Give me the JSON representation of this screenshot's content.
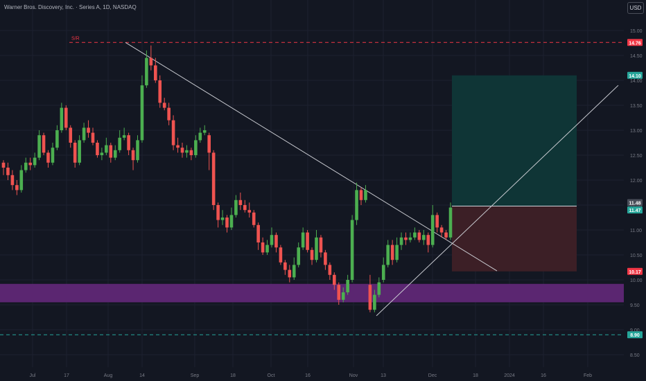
{
  "header": {
    "title": "Warner Bros. Discovery, Inc. · Series A, 1D, NASDAQ",
    "currency_button": "USD"
  },
  "colors": {
    "background": "#131722",
    "up": "#4caf50",
    "down": "#ef5350",
    "grid": "#1c2030",
    "axis_text": "#787b86",
    "resistance": "#f23645",
    "support": "#26a69a",
    "zone": "#5b2671",
    "target_zone": "#0f3536",
    "stop_zone": "#3c1f26",
    "trendline": "#c9cbd1"
  },
  "chart_data": {
    "type": "candlestick",
    "yaxis": {
      "ticks": [
        "15.00",
        "14.50",
        "14.00",
        "13.50",
        "13.00",
        "12.50",
        "12.00",
        "11.50",
        "11.00",
        "10.50",
        "10.00",
        "9.50",
        "9.00",
        "8.50"
      ],
      "range": [
        8.15,
        15.35
      ]
    },
    "xaxis": {
      "ticks": [
        "Jul",
        "17",
        "Aug",
        "14",
        "Sep",
        "18",
        "Oct",
        "16",
        "Nov",
        "13",
        "Dec",
        "18",
        "2024",
        "16",
        "Feb"
      ]
    },
    "price_labels": [
      {
        "value": 14.76,
        "text": "14.76",
        "color": "#f23645"
      },
      {
        "value": 14.1,
        "text": "14.10",
        "color": "#26a69a"
      },
      {
        "value": 11.48,
        "text": "11.48",
        "color": "#4a4e59"
      },
      {
        "value": 11.47,
        "text": "11.47",
        "color": "#26a69a"
      },
      {
        "value": 10.17,
        "text": "10.17",
        "color": "#f23645"
      },
      {
        "value": 8.9,
        "text": "8.90",
        "color": "#26a69a"
      }
    ],
    "resistance": {
      "value": 14.76,
      "label": "S/R"
    },
    "support": {
      "value": 8.9
    },
    "zone": {
      "from": 9.55,
      "to": 9.92
    },
    "long_position": {
      "entry": 11.48,
      "target": 14.1,
      "stop": 10.17
    },
    "candles": [
      [
        12.35,
        12.25,
        12.4,
        12.1
      ],
      [
        12.25,
        12.1,
        12.35,
        12.0
      ],
      [
        12.1,
        11.9,
        12.2,
        11.8
      ],
      [
        11.9,
        11.8,
        12.0,
        11.7
      ],
      [
        11.8,
        12.2,
        12.3,
        11.75
      ],
      [
        12.2,
        12.35,
        12.45,
        12.15
      ],
      [
        12.35,
        12.3,
        12.45,
        12.2
      ],
      [
        12.3,
        12.45,
        12.55,
        12.25
      ],
      [
        12.45,
        12.9,
        13.0,
        12.4
      ],
      [
        12.9,
        12.55,
        12.95,
        12.5
      ],
      [
        12.55,
        12.35,
        12.6,
        12.25
      ],
      [
        12.35,
        12.65,
        12.75,
        12.3
      ],
      [
        12.65,
        13.0,
        13.1,
        12.6
      ],
      [
        13.0,
        13.45,
        13.55,
        12.95
      ],
      [
        13.45,
        13.05,
        13.5,
        13.0
      ],
      [
        13.05,
        12.75,
        13.1,
        12.65
      ],
      [
        12.75,
        12.35,
        12.8,
        12.25
      ],
      [
        12.35,
        12.8,
        12.9,
        12.3
      ],
      [
        12.8,
        13.05,
        13.15,
        12.75
      ],
      [
        13.05,
        12.95,
        13.2,
        12.85
      ],
      [
        12.95,
        12.75,
        13.05,
        12.7
      ],
      [
        12.75,
        12.5,
        12.8,
        12.45
      ],
      [
        12.5,
        12.55,
        12.65,
        12.4
      ],
      [
        12.55,
        12.7,
        12.85,
        12.5
      ],
      [
        12.7,
        12.45,
        12.75,
        12.35
      ],
      [
        12.45,
        12.6,
        12.7,
        12.4
      ],
      [
        12.6,
        12.85,
        13.0,
        12.55
      ],
      [
        12.85,
        12.9,
        13.05,
        12.8
      ],
      [
        12.9,
        12.6,
        12.95,
        12.5
      ],
      [
        12.6,
        12.4,
        12.65,
        12.2
      ],
      [
        12.4,
        12.8,
        12.9,
        12.35
      ],
      [
        12.8,
        13.9,
        14.1,
        12.75
      ],
      [
        13.9,
        14.45,
        14.6,
        13.85
      ],
      [
        14.45,
        14.3,
        14.7,
        14.2
      ],
      [
        14.3,
        14.0,
        14.45,
        13.95
      ],
      [
        14.0,
        13.55,
        14.1,
        13.45
      ],
      [
        13.55,
        13.45,
        13.65,
        13.4
      ],
      [
        13.45,
        13.2,
        13.55,
        13.1
      ],
      [
        13.2,
        12.7,
        13.3,
        12.6
      ],
      [
        12.7,
        12.65,
        12.85,
        12.55
      ],
      [
        12.65,
        12.55,
        12.75,
        12.45
      ],
      [
        12.55,
        12.6,
        12.7,
        12.45
      ],
      [
        12.6,
        12.5,
        12.65,
        12.4
      ],
      [
        12.5,
        12.8,
        12.9,
        12.45
      ],
      [
        12.8,
        12.95,
        13.05,
        12.75
      ],
      [
        12.95,
        13.0,
        13.1,
        12.9
      ],
      [
        12.9,
        12.55,
        12.95,
        12.2
      ],
      [
        12.55,
        11.5,
        12.6,
        11.4
      ],
      [
        11.5,
        11.2,
        11.55,
        11.05
      ],
      [
        11.2,
        11.25,
        11.4,
        11.1
      ],
      [
        11.25,
        11.05,
        11.3,
        10.95
      ],
      [
        11.05,
        11.3,
        11.45,
        11.0
      ],
      [
        11.3,
        11.6,
        11.7,
        11.25
      ],
      [
        11.6,
        11.5,
        11.75,
        11.4
      ],
      [
        11.5,
        11.4,
        11.6,
        11.35
      ],
      [
        11.4,
        11.35,
        11.55,
        11.25
      ],
      [
        11.35,
        11.1,
        11.4,
        11.05
      ],
      [
        11.1,
        10.75,
        11.15,
        10.6
      ],
      [
        10.75,
        10.55,
        10.85,
        10.5
      ],
      [
        10.55,
        10.7,
        10.8,
        10.5
      ],
      [
        10.7,
        10.9,
        11.05,
        10.65
      ],
      [
        10.9,
        10.65,
        10.95,
        10.55
      ],
      [
        10.65,
        10.35,
        10.7,
        10.3
      ],
      [
        10.35,
        10.2,
        10.4,
        10.1
      ],
      [
        10.2,
        10.05,
        10.3,
        9.95
      ],
      [
        10.05,
        10.3,
        10.45,
        10.0
      ],
      [
        10.3,
        10.65,
        10.75,
        10.25
      ],
      [
        10.65,
        10.95,
        11.05,
        10.6
      ],
      [
        10.95,
        10.6,
        11.0,
        10.55
      ],
      [
        10.6,
        10.4,
        10.65,
        10.3
      ],
      [
        10.4,
        10.85,
        11.0,
        10.35
      ],
      [
        10.85,
        10.55,
        10.9,
        10.45
      ],
      [
        10.55,
        10.3,
        10.6,
        10.2
      ],
      [
        10.3,
        10.1,
        10.35,
        10.0
      ],
      [
        10.1,
        9.9,
        10.15,
        9.8
      ],
      [
        9.9,
        9.6,
        9.95,
        9.5
      ],
      [
        9.6,
        9.75,
        9.85,
        9.55
      ],
      [
        9.75,
        10.0,
        10.1,
        9.7
      ],
      [
        10.0,
        11.2,
        11.3,
        9.95
      ],
      [
        11.2,
        11.8,
        11.95,
        11.1
      ],
      [
        11.8,
        11.6,
        11.85,
        11.5
      ],
      [
        11.6,
        11.8,
        11.9,
        11.55
      ],
      [
        9.9,
        9.4,
        10.1,
        9.35
      ],
      [
        9.4,
        9.7,
        9.8,
        9.35
      ],
      [
        9.7,
        9.95,
        10.05,
        9.65
      ],
      [
        10.0,
        10.3,
        10.45,
        9.95
      ],
      [
        10.3,
        10.7,
        10.8,
        10.25
      ],
      [
        10.7,
        10.4,
        10.8,
        10.3
      ],
      [
        10.4,
        10.7,
        10.85,
        10.35
      ],
      [
        10.7,
        10.85,
        10.95,
        10.6
      ],
      [
        10.85,
        10.8,
        10.95,
        10.7
      ],
      [
        10.8,
        10.85,
        10.95,
        10.75
      ],
      [
        10.85,
        10.95,
        11.05,
        10.8
      ],
      [
        10.95,
        10.8,
        11.0,
        10.75
      ],
      [
        10.8,
        10.9,
        11.0,
        10.7
      ],
      [
        10.9,
        10.7,
        10.95,
        10.55
      ],
      [
        10.7,
        11.3,
        11.5,
        10.65
      ],
      [
        11.3,
        11.05,
        11.35,
        10.95
      ],
      [
        11.05,
        10.95,
        11.1,
        10.85
      ],
      [
        10.95,
        10.85,
        11.0,
        10.8
      ],
      [
        10.85,
        11.45,
        11.55,
        10.8
      ]
    ]
  }
}
